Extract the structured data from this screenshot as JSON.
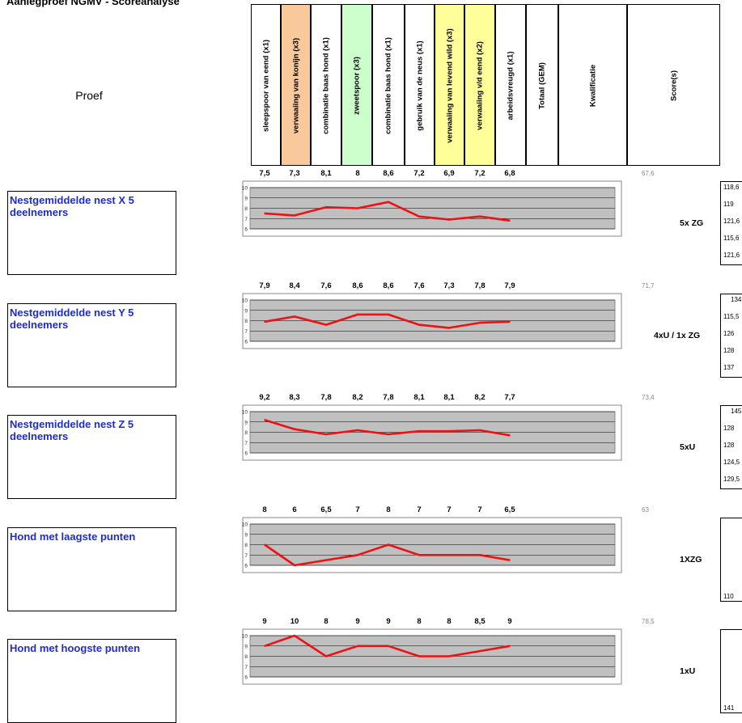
{
  "title": "Aanlegproef NGMV - Scoreanalyse",
  "proef_label": "Proef",
  "columns": [
    {
      "label": "sleepspoor van eend (x1)",
      "color": "#ffffff"
    },
    {
      "label": "verwaaiing van konijn (x3)",
      "color": "#f9c89b"
    },
    {
      "label": "combinatie baas hond (x1)",
      "color": "#ffffff"
    },
    {
      "label": "zweetspoor (x3)",
      "color": "#ccffcc"
    },
    {
      "label": "combinatie baas hond (x1)",
      "color": "#ffffff"
    },
    {
      "label": "gebruik van de neus (x1)",
      "color": "#ffffff"
    },
    {
      "label": "verwaaiing van levend wild (x3)",
      "color": "#ffff99"
    },
    {
      "label": "verwaaiing v/d eend (x2)",
      "color": "#ffff99"
    },
    {
      "label": "arbeidsvreugd (x1)",
      "color": "#ffffff"
    },
    {
      "label": "Totaal (GEM)",
      "color": "#ffffff"
    },
    {
      "label": "Kwalificatie",
      "color": "#ffffff"
    },
    {
      "label": "Score(s)",
      "color": "#ffffff"
    }
  ],
  "line_color": "#ee1111",
  "chart_data": [
    {
      "type": "line",
      "row_label": "Nestgemiddelde nest X 5 deelnemers",
      "values": [
        7.5,
        7.3,
        8.1,
        8,
        8.6,
        7.2,
        6.9,
        7.2,
        6.8
      ],
      "value_labels": [
        "7,5",
        "7,3",
        "8,1",
        "8",
        "8,6",
        "7,2",
        "6,9",
        "7,2",
        "6,8"
      ],
      "total": "67,6",
      "kwalificatie": "5x ZG",
      "scores": [
        "118,6",
        "119",
        "121,6",
        "115,6",
        "121,6"
      ],
      "yticks": [
        "10",
        "9",
        "8",
        "7",
        "6"
      ],
      "ylim": [
        6,
        10
      ]
    },
    {
      "type": "line",
      "row_label": "Nestgemiddelde nest Y 5 deelnemers",
      "values": [
        7.9,
        8.4,
        7.6,
        8.6,
        8.6,
        7.6,
        7.3,
        7.8,
        7.9
      ],
      "value_labels": [
        "7,9",
        "8,4",
        "7,6",
        "8,6",
        "8,6",
        "7,6",
        "7,3",
        "7,8",
        "7,9"
      ],
      "total": "71,7",
      "kwalificatie": "4xU / 1x ZG",
      "scores": [
        "134",
        "115,5",
        "126",
        "128",
        "137"
      ],
      "yticks": [
        "10",
        "9",
        "8",
        "7",
        "6"
      ],
      "ylim": [
        6,
        10
      ]
    },
    {
      "type": "line",
      "row_label": "Nestgemiddelde nest Z 5 deelnemers",
      "values": [
        9.2,
        8.3,
        7.8,
        8.2,
        7.8,
        8.1,
        8.1,
        8.2,
        7.7
      ],
      "value_labels": [
        "9,2",
        "8,3",
        "7,8",
        "8,2",
        "7,8",
        "8,1",
        "8,1",
        "8,2",
        "7,7"
      ],
      "total": "73,4",
      "kwalificatie": "5xU",
      "scores": [
        "145",
        "128",
        "128",
        "124,5",
        "129,5"
      ],
      "yticks": [
        "10",
        "9",
        "8",
        "7",
        "6"
      ],
      "ylim": [
        6,
        10
      ]
    },
    {
      "type": "line",
      "row_label": "Hond met laagste punten",
      "values": [
        8,
        6,
        6.5,
        7,
        8,
        7,
        7,
        7,
        6.5
      ],
      "value_labels": [
        "8",
        "6",
        "6,5",
        "7",
        "8",
        "7",
        "7",
        "7",
        "6,5"
      ],
      "total": "63",
      "kwalificatie": "1XZG",
      "scores": [
        "110"
      ],
      "yticks": [
        "10",
        "9",
        "8",
        "7",
        "6"
      ],
      "ylim": [
        6,
        10
      ]
    },
    {
      "type": "line",
      "row_label": "Hond met hoogste punten",
      "values": [
        9,
        10,
        8,
        9,
        9,
        8,
        8,
        8.5,
        9
      ],
      "value_labels": [
        "9",
        "10",
        "8",
        "9",
        "9",
        "8",
        "8",
        "8,5",
        "9"
      ],
      "total": "78,5",
      "kwalificatie": "1xU",
      "scores": [
        "141"
      ],
      "yticks": [
        "10",
        "9",
        "8",
        "7",
        "6"
      ],
      "ylim": [
        6,
        10
      ]
    }
  ]
}
